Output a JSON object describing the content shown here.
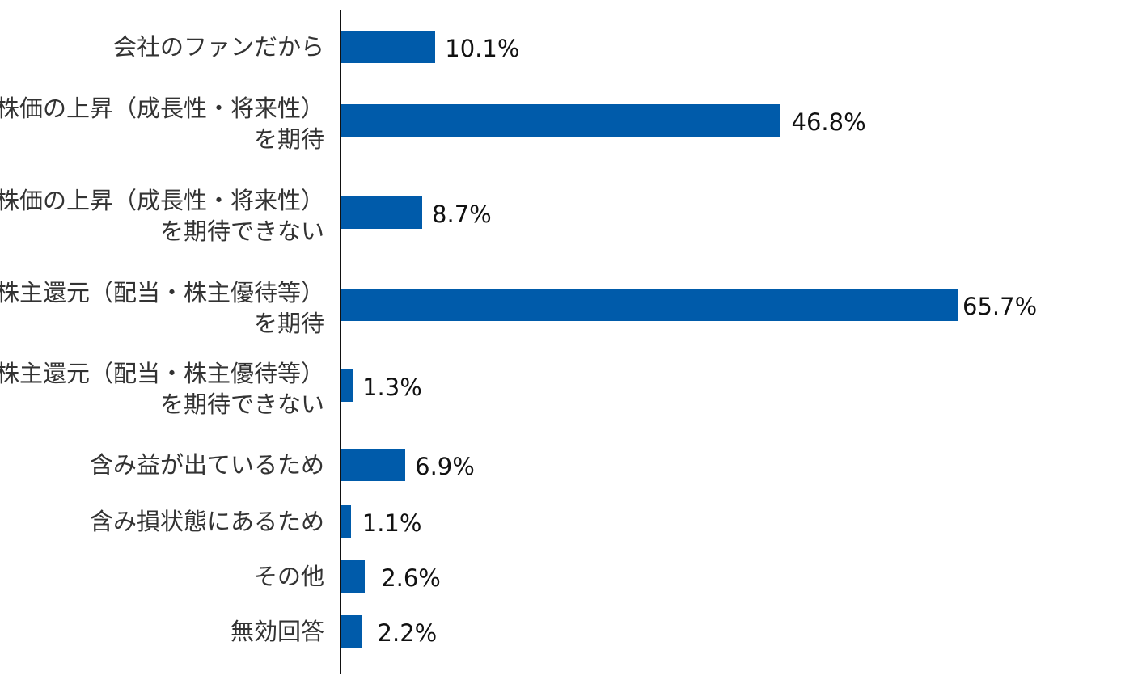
{
  "chart_data": {
    "type": "bar",
    "orientation": "horizontal",
    "categories": [
      "会社のファンだから",
      "株価の上昇（成長性・将来性）\nを期待",
      "株価の上昇（成長性・将来性）\nを期待できない",
      "株主還元（配当・株主優待等）\nを期待",
      "株主還元（配当・株主優待等）\nを期待できない",
      "含み益が出ているため",
      "含み損状態にあるため",
      "その他",
      "無効回答"
    ],
    "values": [
      10.1,
      46.8,
      8.7,
      65.7,
      1.3,
      6.9,
      1.1,
      2.6,
      2.2
    ],
    "value_labels": [
      "10.1%",
      "46.8%",
      "8.7%",
      "65.7%",
      "1.3%",
      "6.9%",
      "1.1%",
      "2.6%",
      "2.2%"
    ],
    "unit": "%",
    "grid": false,
    "bar_color": "#005BAA"
  }
}
